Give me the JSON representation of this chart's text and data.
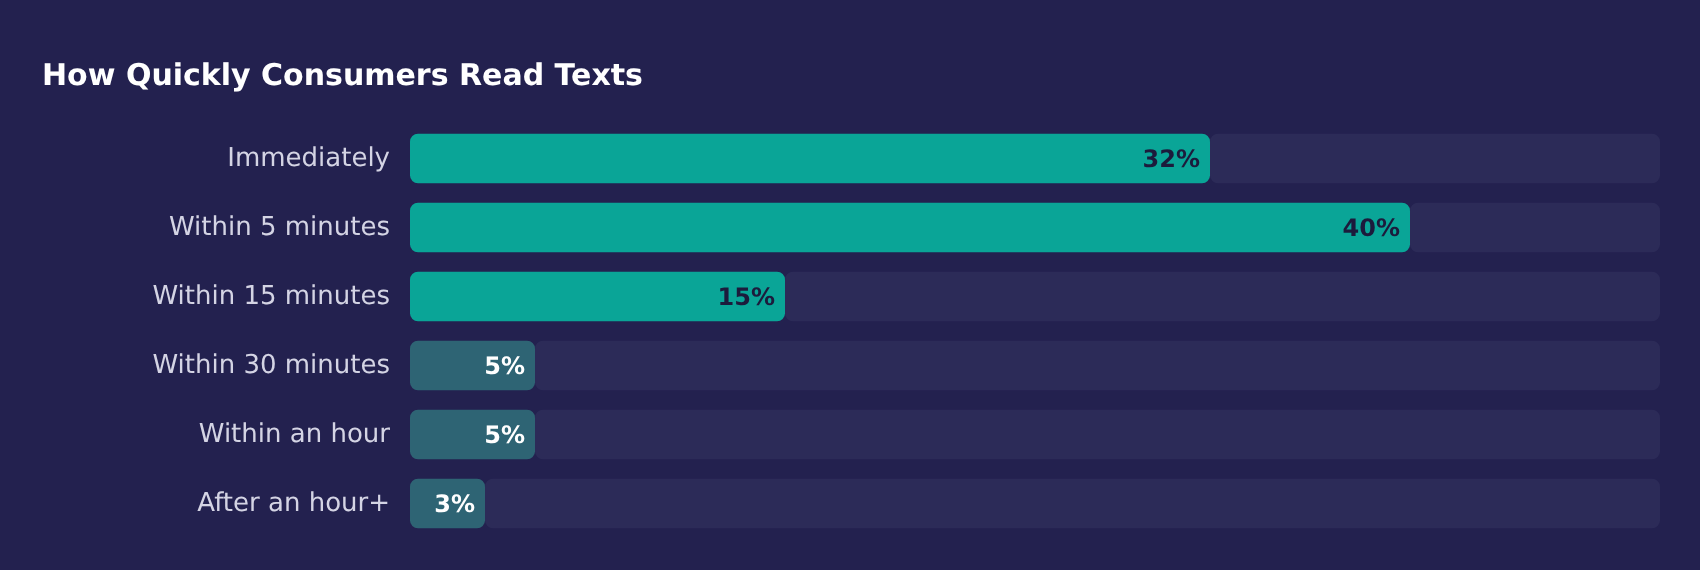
{
  "chart_data": {
    "type": "bar",
    "orientation": "horizontal",
    "stacked": true,
    "title": "How Quickly Consumers Read Texts",
    "categories": [
      "Immediately",
      "Within 5 minutes",
      "Within 15 minutes",
      "Within 30 minutes",
      "Within an hour",
      "After an hour+"
    ],
    "series": [
      {
        "colors": [
          "#0aa597",
          "#0aa597",
          "#0aa597",
          "#2e6474",
          "#2e6474",
          "#2e6474"
        ],
        "values": [
          32,
          40,
          15,
          5,
          5,
          3
        ],
        "value_labels": [
          "32%",
          "40%",
          "15%",
          "5%",
          "5%",
          "3%"
        ]
      },
      {
        "color": "#2c2b58",
        "values": [
          18,
          10,
          35,
          45,
          45,
          47
        ]
      }
    ],
    "xlim": [
      0,
      50
    ]
  }
}
